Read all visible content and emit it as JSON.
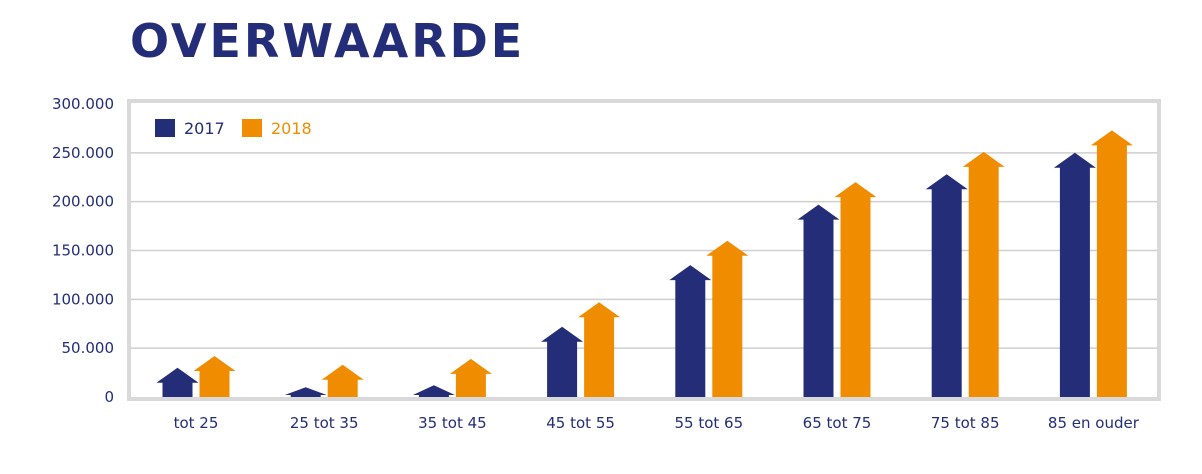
{
  "chart_data": {
    "type": "bar",
    "title": "OVERWAARDE",
    "categories": [
      "tot 25",
      "25 tot 35",
      "35 tot 45",
      "45 tot 55",
      "55 tot 65",
      "65 tot 75",
      "75 tot 85",
      "85 en ouder"
    ],
    "series": [
      {
        "name": "2017",
        "color": "#232d78",
        "values": [
          30000,
          10000,
          12000,
          72000,
          135000,
          197000,
          228000,
          250000
        ]
      },
      {
        "name": "2018",
        "color": "#f08c00",
        "values": [
          42000,
          33000,
          39000,
          97000,
          160000,
          220000,
          251000,
          273000
        ]
      }
    ],
    "yticks": [
      "0",
      "50.000",
      "100.000",
      "150.000",
      "200.000",
      "250.000",
      "300.000"
    ],
    "ylim": [
      0,
      300000
    ],
    "grid": true,
    "legend_position": "top-left",
    "colors": {
      "text": "#232d78",
      "frame": "#d9d9d9",
      "grid": "#cfcfcf"
    }
  }
}
